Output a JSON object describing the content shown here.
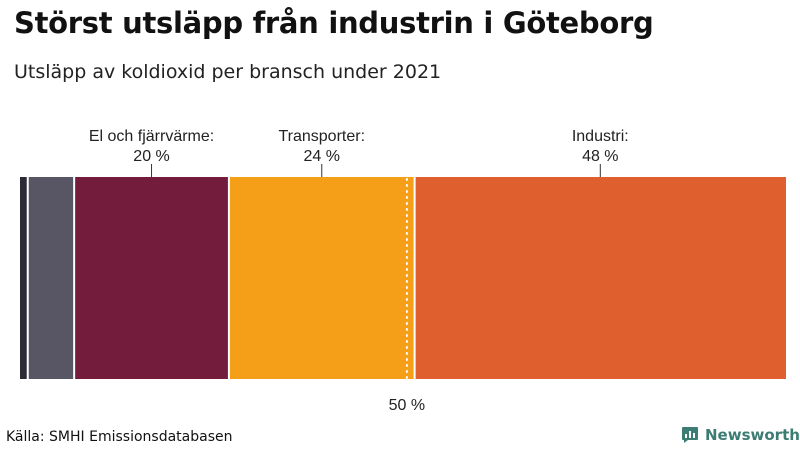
{
  "title": "Störst utsläpp från industrin i Göteborg",
  "subtitle": "Utsläpp av koldioxid per bransch under 2021",
  "source": "Källa: SMHI Emissionsdatabasen",
  "brand": {
    "name": "Newsworthy",
    "color": "#3d7c73"
  },
  "chart_data": {
    "type": "bar",
    "orientation": "horizontal-stacked",
    "unit": "%",
    "xlim": [
      0,
      100
    ],
    "segments": [
      {
        "value": 1,
        "color": "#2b2a35"
      },
      {
        "value": 6,
        "color": "#585664"
      },
      {
        "value": 20,
        "color": "#731c3c",
        "label": "El och fjärrvärme:",
        "value_label": "20 %"
      },
      {
        "value": 24,
        "color": "#f59e18",
        "label": "Transporter:",
        "value_label": "24 %"
      },
      {
        "value": 48,
        "color": "#e05f2f",
        "label": "Industri:",
        "value_label": "48 %"
      }
    ],
    "reference_line": {
      "value": 50,
      "label": "50 %"
    }
  }
}
